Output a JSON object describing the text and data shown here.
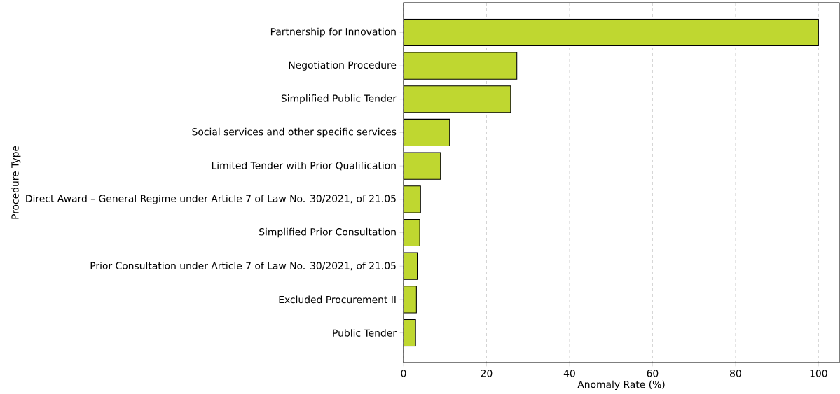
{
  "chart_data": {
    "type": "bar",
    "orientation": "horizontal",
    "xlabel": "Anomaly Rate (%)",
    "ylabel": "Procedure Type",
    "categories": [
      "Partnership for Innovation",
      "Negotiation Procedure",
      "Simplified Public Tender",
      "Social services and other specific services",
      "Limited Tender with Prior Qualification",
      "Direct Award – General Regime under Article 7 of Law No. 30/2021, of 21.05",
      "Simplified Prior Consultation",
      "Prior Consultation under Article 7 of Law No. 30/2021, of 21.05",
      "Excluded Procurement II",
      "Public Tender"
    ],
    "values": [
      100,
      27.3,
      25.8,
      11.1,
      8.9,
      4.1,
      3.9,
      3.3,
      3.1,
      2.9
    ],
    "color": "#bfd730",
    "xlim": [
      0,
      105
    ],
    "xticks": [
      0,
      20,
      40,
      60,
      80,
      100
    ],
    "grid": "x"
  }
}
